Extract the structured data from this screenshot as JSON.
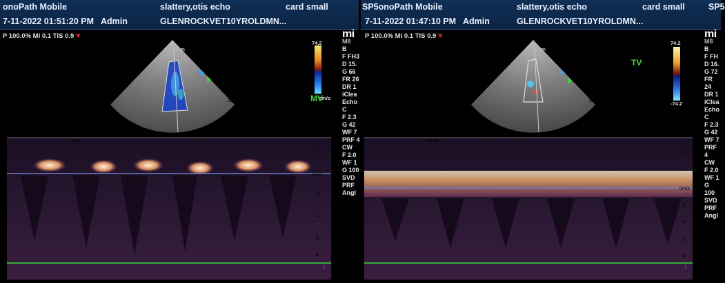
{
  "left": {
    "header": {
      "app": "onoPath Mobile",
      "patient": "slattery,otis echo",
      "preset": "card small",
      "datetime": "7-11-2022 01:51:20 PM",
      "user": "Admin",
      "study": "GLENROCKVET10YROLDMN..."
    },
    "measurements": {
      "prefix": "P 100.0%",
      "mi": "MI 0.1",
      "tis": "TIS 0.9"
    },
    "colorbar": {
      "max": "74.2",
      "unit": "cm/s"
    },
    "valve_label": "MV",
    "depth_marks": [
      "5",
      "10",
      "15"
    ],
    "sweep_counter": "3/3",
    "spectral_scale": [
      "2",
      "0m/s",
      "-2",
      "-4",
      "-6",
      "-8"
    ],
    "baseline_marker": "1",
    "colors": {
      "doppler": "#f0b070",
      "header": "#0d2a4c"
    }
  },
  "right": {
    "header": {
      "app": "SP5onoPath Mobile",
      "patient": "slattery,otis echo",
      "preset": "card small",
      "overflow": "SP5",
      "datetime": "7-11-2022 01:47:10 PM",
      "user": "Admin",
      "study": "GLENROCKVET10YROLDMN..."
    },
    "measurements": {
      "prefix": "P 100.0%",
      "mi": "MI 0.1",
      "tis": "TIS 0.9"
    },
    "colorbar": {
      "max": "74.2",
      "min": "-74.2"
    },
    "valve_label": "TV",
    "depth_marks": [
      "5",
      "10",
      "15"
    ],
    "sweep_counter": "19/19",
    "spectral_scale": [
      "2",
      "1",
      "0m/s",
      "-1",
      "-2",
      "-3",
      "-4"
    ],
    "baseline_marker": "1",
    "sidepanel": {
      "brand": "mi",
      "mode": "M8",
      "sec_b": "B",
      "b_items": [
        "F FH",
        "D 16.",
        "G 72",
        "FR 24",
        "DR 1",
        "iClea",
        "Echo"
      ],
      "sec_c": "C",
      "c_items": [
        "F 2.3",
        "G 42",
        "WF 7",
        "PRF 4"
      ],
      "sec_cw": "CW",
      "cw_items": [
        "F 2.0",
        "WF 1",
        "G 100",
        "SVD",
        "PRF",
        "Angl"
      ]
    }
  },
  "left_sidepanel": {
    "brand": "mi",
    "mode": "M8",
    "sec_b": "B",
    "b_items": [
      "F FH3",
      "D 15.",
      "G 66",
      "FR 26",
      "DR 1",
      "iClea",
      "Echo"
    ],
    "sec_c": "C",
    "c_items": [
      "F 2.3",
      "G 42",
      "WF 7",
      "PRF 4"
    ],
    "sec_cw": "CW",
    "cw_items": [
      "F 2.0",
      "WF 1",
      "G 100",
      "SVD",
      "PRF",
      "Angl"
    ]
  }
}
